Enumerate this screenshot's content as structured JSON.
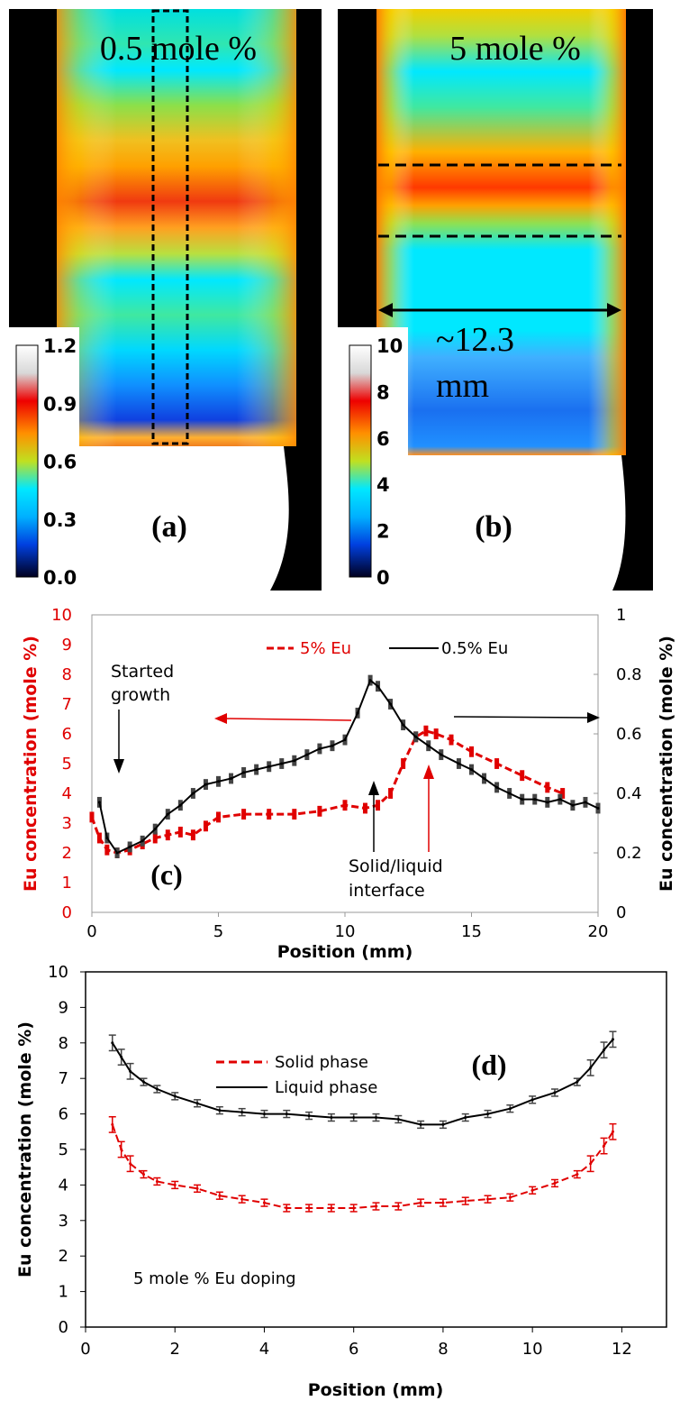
{
  "panel_a": {
    "label": "(a)",
    "title": "0.5 mole %",
    "colorbar_ticks": [
      "1.2",
      "0.9",
      "0.6",
      "0.3",
      "0.0"
    ]
  },
  "panel_b": {
    "label": "(b)",
    "title": "5 mole %",
    "colorbar_ticks": [
      "10",
      "8",
      "6",
      "4",
      "2",
      "0"
    ],
    "width_line1": "~12.3",
    "width_line2": "mm"
  },
  "colors": {
    "red": "#e00000",
    "black": "#000000",
    "errorbar_dark": "#444444",
    "cyan": "#00e8ff"
  },
  "chart_data": [
    {
      "id": "c",
      "type": "line",
      "label": "(c)",
      "xlabel": "Position (mm)",
      "ylabel_left": "Eu concentration (mole %)",
      "ylabel_right": "Eu concentration (mole %)",
      "xlim": [
        0,
        20
      ],
      "ylim_left": [
        0,
        10
      ],
      "ylim_right": [
        0,
        1
      ],
      "x_ticks": [
        "0",
        "5",
        "10",
        "15",
        "20"
      ],
      "y_ticks_left": [
        "0",
        "1",
        "2",
        "3",
        "4",
        "5",
        "6",
        "7",
        "8",
        "9",
        "10"
      ],
      "y_ticks_right": [
        "0",
        "0.2",
        "0.4",
        "0.6",
        "0.8",
        "1"
      ],
      "legend_position": "top",
      "annotations": {
        "started_growth_1": "Started",
        "started_growth_2": "growth",
        "interface_1": "Solid/liquid",
        "interface_2": "interface"
      },
      "series": [
        {
          "name": "5% Eu",
          "axis": "left",
          "color": "#e00000",
          "style": "dashed",
          "x": [
            0.0,
            0.3,
            0.6,
            1.0,
            1.5,
            2.0,
            2.5,
            3.0,
            3.5,
            4.0,
            4.5,
            5.0,
            6.0,
            7.0,
            8.0,
            9.0,
            10.0,
            10.8,
            11.3,
            11.8,
            12.3,
            12.8,
            13.2,
            13.6,
            14.2,
            15.0,
            16.0,
            17.0,
            18.0,
            18.6
          ],
          "y": [
            3.2,
            2.5,
            2.1,
            2.0,
            2.1,
            2.3,
            2.5,
            2.6,
            2.7,
            2.6,
            2.9,
            3.2,
            3.3,
            3.3,
            3.3,
            3.4,
            3.6,
            3.5,
            3.6,
            4.0,
            5.0,
            5.9,
            6.1,
            6.0,
            5.8,
            5.4,
            5.0,
            4.6,
            4.2,
            4.0
          ]
        },
        {
          "name": "0.5% Eu",
          "axis": "right",
          "color": "#000000",
          "style": "solid",
          "x": [
            0.3,
            0.6,
            1.0,
            1.5,
            2.0,
            2.5,
            3.0,
            3.5,
            4.0,
            4.5,
            5.0,
            5.5,
            6.0,
            6.5,
            7.0,
            7.5,
            8.0,
            8.5,
            9.0,
            9.5,
            10.0,
            10.5,
            11.0,
            11.3,
            11.8,
            12.3,
            12.8,
            13.3,
            13.8,
            14.5,
            15.0,
            15.5,
            16.0,
            16.5,
            17.0,
            17.5,
            18.0,
            18.5,
            19.0,
            19.5,
            20.0
          ],
          "y": [
            0.37,
            0.25,
            0.2,
            0.22,
            0.24,
            0.28,
            0.33,
            0.36,
            0.4,
            0.43,
            0.44,
            0.45,
            0.47,
            0.48,
            0.49,
            0.5,
            0.51,
            0.53,
            0.55,
            0.56,
            0.58,
            0.67,
            0.78,
            0.76,
            0.7,
            0.63,
            0.59,
            0.56,
            0.53,
            0.5,
            0.48,
            0.45,
            0.42,
            0.4,
            0.38,
            0.38,
            0.37,
            0.38,
            0.36,
            0.37,
            0.35
          ]
        }
      ]
    },
    {
      "id": "d",
      "type": "line",
      "label": "(d)",
      "xlabel": "Position (mm)",
      "ylabel": "Eu concentration (mole %)",
      "xlim": [
        0,
        13
      ],
      "ylim": [
        0,
        10
      ],
      "x_ticks": [
        "0",
        "2",
        "4",
        "6",
        "8",
        "10",
        "12"
      ],
      "y_ticks": [
        "0",
        "1",
        "2",
        "3",
        "4",
        "5",
        "6",
        "7",
        "8",
        "9",
        "10"
      ],
      "legend_position": "top-left",
      "annotation": "5 mole % Eu doping",
      "series": [
        {
          "name": "Solid phase",
          "color": "#e00000",
          "style": "dashed",
          "x": [
            0.6,
            0.8,
            1.0,
            1.3,
            1.6,
            2.0,
            2.5,
            3.0,
            3.5,
            4.0,
            4.5,
            5.0,
            5.5,
            6.0,
            6.5,
            7.0,
            7.5,
            8.0,
            8.5,
            9.0,
            9.5,
            10.0,
            10.5,
            11.0,
            11.3,
            11.6,
            11.8
          ],
          "y": [
            5.7,
            5.0,
            4.6,
            4.3,
            4.1,
            4.0,
            3.9,
            3.7,
            3.6,
            3.5,
            3.35,
            3.35,
            3.35,
            3.35,
            3.4,
            3.4,
            3.5,
            3.5,
            3.55,
            3.6,
            3.65,
            3.85,
            4.05,
            4.3,
            4.6,
            5.1,
            5.5
          ]
        },
        {
          "name": "Liquid phase",
          "color": "#000000",
          "style": "solid",
          "x": [
            0.6,
            0.8,
            1.0,
            1.3,
            1.6,
            2.0,
            2.5,
            3.0,
            3.5,
            4.0,
            4.5,
            5.0,
            5.5,
            6.0,
            6.5,
            7.0,
            7.5,
            8.0,
            8.5,
            9.0,
            9.5,
            10.0,
            10.5,
            11.0,
            11.3,
            11.6,
            11.8
          ],
          "y": [
            8.0,
            7.6,
            7.2,
            6.9,
            6.7,
            6.5,
            6.3,
            6.1,
            6.05,
            6.0,
            6.0,
            5.95,
            5.9,
            5.9,
            5.9,
            5.85,
            5.7,
            5.7,
            5.9,
            6.0,
            6.15,
            6.4,
            6.6,
            6.9,
            7.3,
            7.8,
            8.1
          ]
        }
      ]
    }
  ]
}
